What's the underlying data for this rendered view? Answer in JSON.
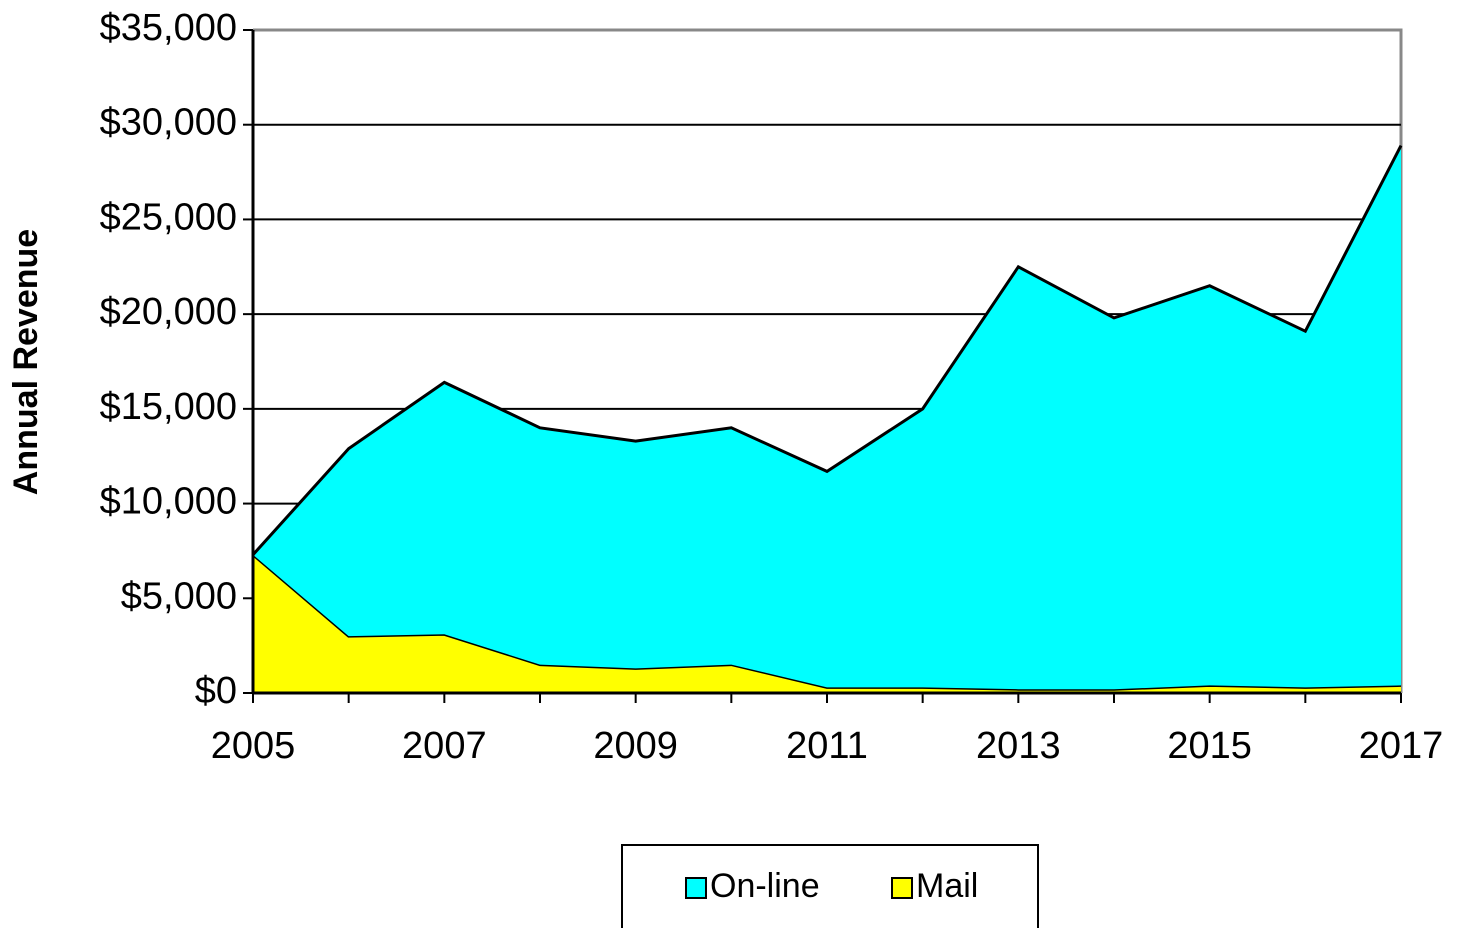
{
  "chart_data": {
    "type": "stacked_area",
    "y_axis_label": "Annual Revenue",
    "x": [
      2005,
      2006,
      2007,
      2008,
      2009,
      2010,
      2011,
      2012,
      2013,
      2014,
      2015,
      2016,
      2017
    ],
    "series": [
      {
        "name": "On-line",
        "color": "#00ffff",
        "values": [
          0,
          9900,
          13300,
          12500,
          12000,
          12500,
          11400,
          14700,
          22300,
          19600,
          21100,
          18800,
          28500
        ]
      },
      {
        "name": "Mail",
        "color": "#ffff00",
        "values": [
          7300,
          3000,
          3100,
          1500,
          1300,
          1500,
          300,
          300,
          200,
          200,
          400,
          300,
          400
        ]
      }
    ],
    "xlim": [
      2005,
      2017
    ],
    "xticks": [
      2005,
      2007,
      2009,
      2011,
      2013,
      2015,
      2017
    ],
    "ylim": [
      0,
      35000
    ],
    "yticks": [
      {
        "value": 0,
        "label": "$0"
      },
      {
        "value": 5000,
        "label": "$5,000"
      },
      {
        "value": 10000,
        "label": "$10,000"
      },
      {
        "value": 15000,
        "label": "$15,000"
      },
      {
        "value": 20000,
        "label": "$20,000"
      },
      {
        "value": 25000,
        "label": "$25,000"
      },
      {
        "value": 30000,
        "label": "$30,000"
      },
      {
        "value": 35000,
        "label": "$35,000"
      }
    ],
    "grid": true,
    "legend": "bottom"
  }
}
